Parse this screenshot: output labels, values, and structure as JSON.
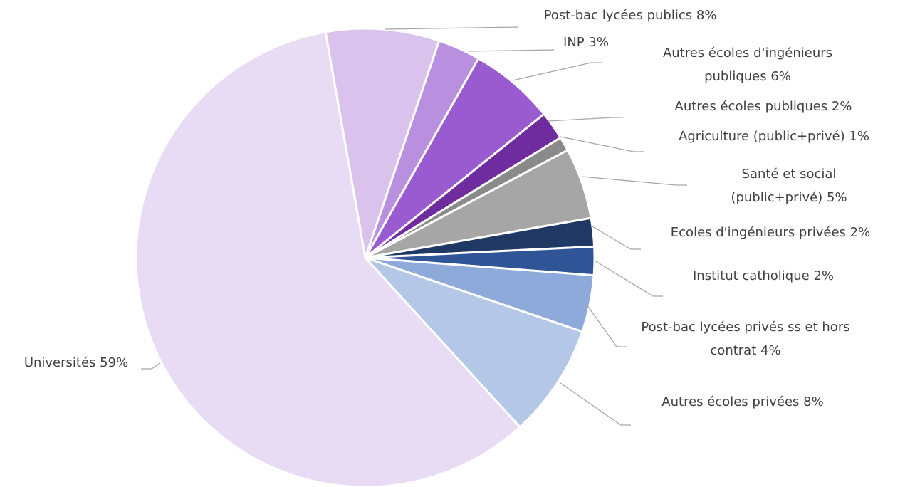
{
  "chart_data": {
    "type": "pie",
    "categories": [
      "Post-bac lycées publics",
      "INP",
      "Autres écoles d'ingénieurs publiques",
      "Autres écoles publiques",
      "Agriculture (public+privé)",
      "Santé et social (public+privé)",
      "Ecoles d'ingénieurs privées",
      "Institut catholique",
      "Post-bac lycées privés ss et hors contrat",
      "Autres écoles privées",
      "Universités"
    ],
    "values": [
      8,
      3,
      6,
      2,
      1,
      5,
      2,
      2,
      4,
      8,
      59
    ],
    "value_labels": [
      "8%",
      "3%",
      "6%",
      "2%",
      "1%",
      "5%",
      "2%",
      "2%",
      "4%",
      "8%",
      "59%"
    ],
    "colors": [
      "#d9c2ec",
      "#b98fdf",
      "#9a5bd0",
      "#6f2c9e",
      "#8a8a8a",
      "#a6a6a6",
      "#1f3864",
      "#2f5597",
      "#8eaadb",
      "#b4c7e7",
      "#e8dbf4"
    ]
  }
}
